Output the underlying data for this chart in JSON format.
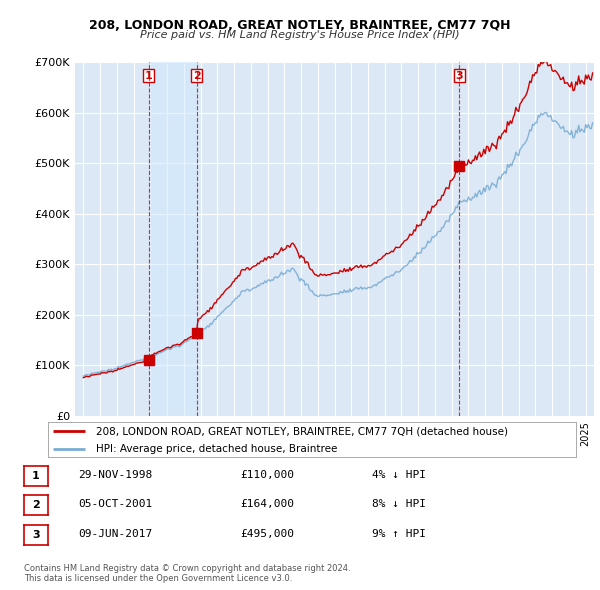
{
  "title": "208, LONDON ROAD, GREAT NOTLEY, BRAINTREE, CM77 7QH",
  "subtitle": "Price paid vs. HM Land Registry's House Price Index (HPI)",
  "background_color": "#ffffff",
  "plot_bg_color": "#dce8f5",
  "grid_color": "#ffffff",
  "sale_color": "#cc0000",
  "hpi_color": "#7aadd4",
  "vline_color": "#cc0000",
  "highlight_color": "#e8f2ff",
  "ylim": [
    0,
    700000
  ],
  "yticks": [
    0,
    100000,
    200000,
    300000,
    400000,
    500000,
    600000,
    700000
  ],
  "ytick_labels": [
    "£0",
    "£100K",
    "£200K",
    "£300K",
    "£400K",
    "£500K",
    "£600K",
    "£700K"
  ],
  "sales": [
    {
      "date_num": 1998.91,
      "price": 110000,
      "label": "1"
    },
    {
      "date_num": 2001.76,
      "price": 164000,
      "label": "2"
    },
    {
      "date_num": 2017.44,
      "price": 495000,
      "label": "3"
    }
  ],
  "table_rows": [
    {
      "num": "1",
      "date": "29-NOV-1998",
      "price": "£110,000",
      "pct": "4%",
      "dir": "↓",
      "rel": "HPI"
    },
    {
      "num": "2",
      "date": "05-OCT-2001",
      "price": "£164,000",
      "pct": "8%",
      "dir": "↓",
      "rel": "HPI"
    },
    {
      "num": "3",
      "date": "09-JUN-2017",
      "price": "£495,000",
      "pct": "9%",
      "dir": "↑",
      "rel": "HPI"
    }
  ],
  "legend_sale_label": "208, LONDON ROAD, GREAT NOTLEY, BRAINTREE, CM77 7QH (detached house)",
  "legend_hpi_label": "HPI: Average price, detached house, Braintree",
  "footnote": "Contains HM Land Registry data © Crown copyright and database right 2024.\nThis data is licensed under the Open Government Licence v3.0.",
  "xmin": 1994.5,
  "xmax": 2025.5
}
